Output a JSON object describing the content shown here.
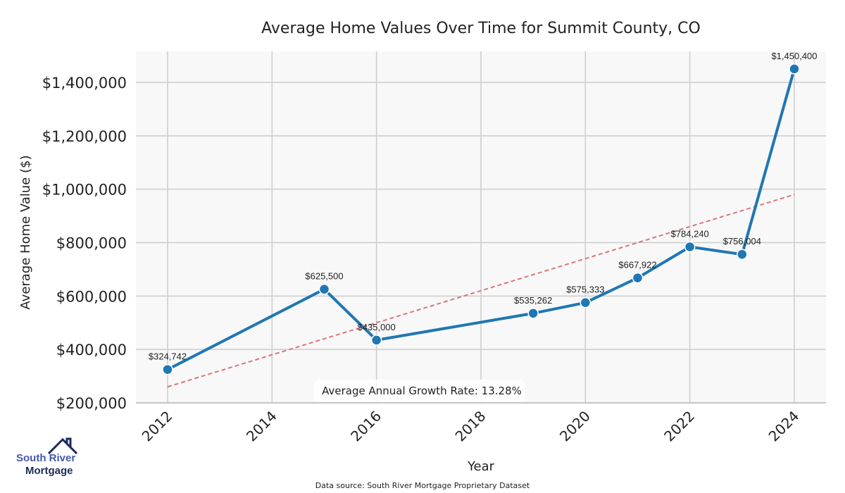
{
  "chart_data": {
    "type": "line",
    "title": "Average Home Values Over Time for Summit County, CO",
    "xlabel": "Year",
    "ylabel": "Average Home Value ($)",
    "xlim": [
      2011.4,
      2024.6
    ],
    "ylim": [
      200000,
      1500000
    ],
    "x_ticks": [
      2012,
      2014,
      2016,
      2018,
      2020,
      2022,
      2024
    ],
    "y_ticks": [
      200000,
      400000,
      600000,
      800000,
      1000000,
      1200000,
      1400000
    ],
    "y_tick_labels": [
      "$200,000",
      "$400,000",
      "$600,000",
      "$800,000",
      "$1,000,000",
      "$1,200,000",
      "$1,400,000"
    ],
    "grid": true,
    "series": [
      {
        "name": "Average Home Value",
        "color": "#1f77b4",
        "x": [
          2012,
          2015,
          2016,
          2019,
          2020,
          2021,
          2022,
          2023,
          2024
        ],
        "values": [
          324742,
          625500,
          435000,
          535262,
          575333,
          667922,
          784240,
          756004,
          1450400
        ],
        "labels": [
          "$324,742",
          "$625,500",
          "$435,000",
          "$535,262",
          "$575,333",
          "$667,922",
          "$784,240",
          "$756,004",
          "$1,450,400"
        ]
      }
    ],
    "trend": {
      "name": "Trend",
      "color": "#d9777a",
      "x": [
        2012,
        2024
      ],
      "values": [
        260000,
        980000
      ]
    },
    "annotation": "Average Annual Growth Rate: 13.28%"
  },
  "logo": {
    "line1": "South River",
    "line2": "Mortgage"
  },
  "source": "Data source: South River Mortgage Proprietary Dataset"
}
